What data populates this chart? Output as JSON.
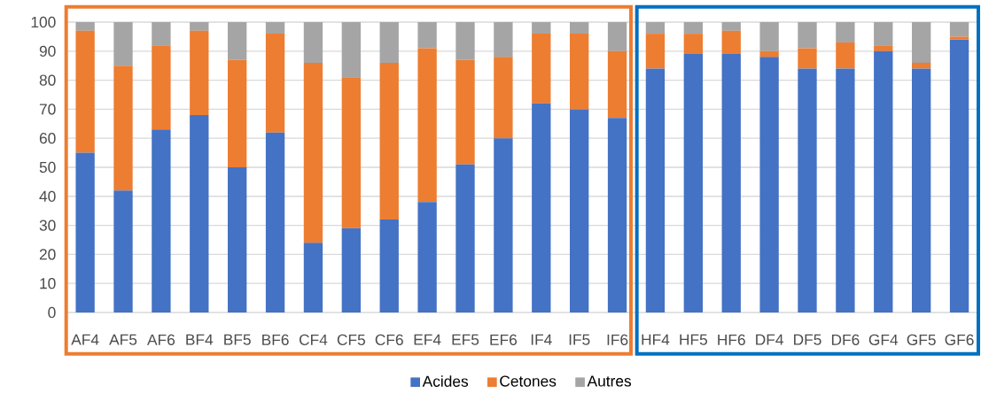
{
  "chart_data": {
    "type": "bar",
    "stacked": true,
    "categories": [
      "AF4",
      "AF5",
      "AF6",
      "BF4",
      "BF5",
      "BF6",
      "CF4",
      "CF5",
      "CF6",
      "EF4",
      "EF5",
      "EF6",
      "IF4",
      "IF5",
      "IF6",
      "HF4",
      "HF5",
      "HF6",
      "DF4",
      "DF5",
      "DF6",
      "GF4",
      "GF5",
      "GF6"
    ],
    "series": [
      {
        "name": "Acides",
        "color": "#4472c4",
        "values": [
          55,
          42,
          63,
          68,
          50,
          62,
          24,
          29,
          32,
          38,
          51,
          60,
          72,
          70,
          67,
          84,
          89,
          89,
          88,
          84,
          84,
          90,
          84,
          94
        ]
      },
      {
        "name": "Cetones",
        "color": "#ed7d31",
        "values": [
          42,
          43,
          29,
          29,
          37,
          34,
          62,
          52,
          54,
          53,
          36,
          28,
          24,
          26,
          23,
          12,
          7,
          8,
          2,
          7,
          9,
          2,
          2,
          1
        ]
      },
      {
        "name": "Autres",
        "color": "#a5a5a5",
        "values": [
          3,
          15,
          8,
          3,
          13,
          4,
          14,
          19,
          14,
          9,
          13,
          12,
          4,
          4,
          10,
          4,
          4,
          3,
          10,
          9,
          7,
          8,
          14,
          5
        ]
      }
    ],
    "ylim": [
      0,
      100
    ],
    "yticks": [
      0,
      10,
      20,
      30,
      40,
      50,
      60,
      70,
      80,
      90,
      100
    ],
    "grid": "y",
    "legend": "bottom"
  }
}
